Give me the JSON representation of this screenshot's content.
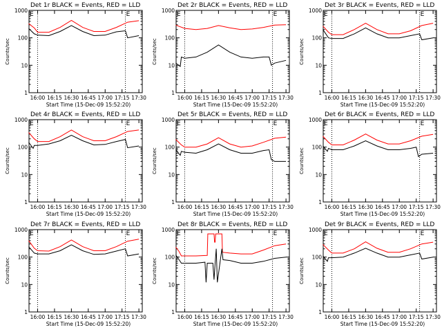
{
  "chart_data": [
    {
      "type": "line",
      "title": "Det 1r BLACK = Events, RED = LLD",
      "xlabel": "Start Time (15-Dec-09 15:52:20)",
      "ylabel": "Counts/sec",
      "yscale": "log",
      "ylim": [
        1,
        1000
      ],
      "x_ticks": [
        "16:00",
        "16:15",
        "16:30",
        "16:45",
        "17:00",
        "17:15",
        "17:30"
      ],
      "y_ticks": [
        "1",
        "10",
        "100",
        "1000"
      ],
      "markers": [
        "16:00",
        "17:18"
      ],
      "flag": "E",
      "series": [
        {
          "color": "#ff0000",
          "x": [
            "15:52",
            "15:57",
            "16:00",
            "16:10",
            "16:20",
            "16:30",
            "16:40",
            "16:50",
            "17:00",
            "17:10",
            "17:20",
            "17:30"
          ],
          "values": [
            330,
            230,
            160,
            160,
            240,
            430,
            240,
            170,
            170,
            240,
            370,
            420
          ]
        },
        {
          "color": "#000000",
          "x": [
            "15:52",
            "15:57",
            "16:00",
            "16:10",
            "16:20",
            "16:30",
            "16:40",
            "16:50",
            "17:00",
            "17:10",
            "17:18",
            "17:20",
            "17:30"
          ],
          "values": [
            220,
            140,
            125,
            120,
            170,
            280,
            170,
            120,
            125,
            165,
            180,
            100,
            120
          ]
        }
      ]
    },
    {
      "type": "line",
      "title": "Det 2r BLACK = Events, RED = LLD",
      "xlabel": "Start Time (15-Dec-09 15:52:20)",
      "ylabel": "Counts/sec",
      "yscale": "log",
      "ylim": [
        1,
        1000
      ],
      "x_ticks": [
        "16:00",
        "16:15",
        "16:30",
        "16:45",
        "17:00",
        "17:15",
        "17:30"
      ],
      "y_ticks": [
        "1",
        "10",
        "100",
        "1000"
      ],
      "markers": [
        "16:00",
        "17:18"
      ],
      "flag": "E",
      "series": [
        {
          "color": "#ff0000",
          "x": [
            "15:52",
            "16:00",
            "16:10",
            "16:20",
            "16:30",
            "16:40",
            "16:50",
            "17:00",
            "17:10",
            "17:20",
            "17:30"
          ],
          "values": [
            290,
            220,
            200,
            220,
            280,
            230,
            200,
            210,
            240,
            290,
            300
          ]
        },
        {
          "color": "#000000",
          "x": [
            "15:52",
            "15:56",
            "15:57",
            "16:00",
            "16:10",
            "16:20",
            "16:30",
            "16:40",
            "16:50",
            "17:00",
            "17:10",
            "17:15",
            "17:17",
            "17:20",
            "17:30"
          ],
          "values": [
            12,
            9,
            20,
            18,
            20,
            30,
            55,
            30,
            20,
            18,
            20,
            20,
            10,
            12,
            15
          ]
        }
      ]
    },
    {
      "type": "line",
      "title": "Det 3r BLACK = Events, RED = LLD",
      "xlabel": "Start Time (15-Dec-09 15:52:20)",
      "ylabel": "Counts/sec",
      "yscale": "log",
      "ylim": [
        1,
        1000
      ],
      "x_ticks": [
        "16:00",
        "16:15",
        "16:30",
        "16:45",
        "17:00",
        "17:15",
        "17:30"
      ],
      "y_ticks": [
        "1",
        "10",
        "100",
        "1000"
      ],
      "markers": [
        "16:00",
        "17:18"
      ],
      "flag": "E",
      "series": [
        {
          "color": "#ff0000",
          "x": [
            "15:52",
            "15:57",
            "16:00",
            "16:10",
            "16:20",
            "16:30",
            "16:40",
            "16:50",
            "17:00",
            "17:10",
            "17:20",
            "17:30"
          ],
          "values": [
            270,
            160,
            130,
            130,
            200,
            340,
            200,
            140,
            140,
            180,
            280,
            340
          ]
        },
        {
          "color": "#000000",
          "x": [
            "15:52",
            "15:57",
            "16:00",
            "16:10",
            "16:20",
            "16:30",
            "16:40",
            "16:50",
            "17:00",
            "17:10",
            "17:18",
            "17:20",
            "17:30"
          ],
          "values": [
            200,
            100,
            95,
            95,
            140,
            230,
            140,
            100,
            100,
            120,
            140,
            85,
            100
          ]
        }
      ]
    },
    {
      "type": "line",
      "title": "Det 4r BLACK = Events, RED = LLD",
      "xlabel": "Start Time (15-Dec-09 15:52:20)",
      "ylabel": "Counts/sec",
      "yscale": "log",
      "ylim": [
        1,
        1000
      ],
      "x_ticks": [
        "16:00",
        "16:15",
        "16:30",
        "16:45",
        "17:00",
        "17:15",
        "17:30"
      ],
      "y_ticks": [
        "1",
        "10",
        "100",
        "1000"
      ],
      "markers": [
        "16:00",
        "17:18"
      ],
      "flag": "E",
      "series": [
        {
          "color": "#ff0000",
          "x": [
            "15:52",
            "15:57",
            "16:00",
            "16:10",
            "16:20",
            "16:30",
            "16:40",
            "16:50",
            "17:00",
            "17:10",
            "17:20",
            "17:30"
          ],
          "values": [
            340,
            200,
            160,
            160,
            240,
            420,
            240,
            170,
            170,
            240,
            370,
            420
          ]
        },
        {
          "color": "#000000",
          "x": [
            "15:52",
            "15:56",
            "15:57",
            "16:00",
            "16:10",
            "16:20",
            "16:30",
            "16:40",
            "16:50",
            "17:00",
            "17:10",
            "17:18",
            "17:20",
            "17:30"
          ],
          "values": [
            150,
            90,
            115,
            115,
            130,
            170,
            270,
            170,
            120,
            125,
            160,
            190,
            95,
            110
          ]
        }
      ]
    },
    {
      "type": "line",
      "title": "Det 5r BLACK = Events, RED = LLD",
      "xlabel": "Start Time (15-Dec-09 15:52:20)",
      "ylabel": "Counts/sec",
      "yscale": "log",
      "ylim": [
        1,
        1000
      ],
      "x_ticks": [
        "16:00",
        "16:15",
        "16:30",
        "16:45",
        "17:00",
        "17:15",
        "17:30"
      ],
      "y_ticks": [
        "1",
        "10",
        "100",
        "1000"
      ],
      "markers": [
        "16:00",
        "17:18"
      ],
      "flag": "E",
      "series": [
        {
          "color": "#ff0000",
          "x": [
            "15:52",
            "15:57",
            "16:00",
            "16:10",
            "16:20",
            "16:30",
            "16:40",
            "16:50",
            "17:00",
            "17:10",
            "17:20",
            "17:30"
          ],
          "values": [
            190,
            120,
            100,
            100,
            130,
            220,
            130,
            100,
            110,
            150,
            210,
            230
          ]
        },
        {
          "color": "#000000",
          "x": [
            "15:52",
            "15:56",
            "15:57",
            "16:00",
            "16:10",
            "16:20",
            "16:30",
            "16:40",
            "16:50",
            "17:00",
            "17:10",
            "17:15",
            "17:17",
            "17:20",
            "17:30"
          ],
          "values": [
            80,
            50,
            70,
            65,
            60,
            80,
            130,
            80,
            60,
            60,
            75,
            80,
            35,
            30,
            30
          ]
        }
      ]
    },
    {
      "type": "line",
      "title": "Det 6r BLACK = Events, RED = LLD",
      "xlabel": "Start Time (15-Dec-09 15:52:20)",
      "ylabel": "Counts/sec",
      "yscale": "log",
      "ylim": [
        1,
        1000
      ],
      "x_ticks": [
        "16:00",
        "16:15",
        "16:30",
        "16:45",
        "17:00",
        "17:15",
        "17:30"
      ],
      "y_ticks": [
        "1",
        "10",
        "100",
        "1000"
      ],
      "markers": [
        "16:00",
        "17:18"
      ],
      "flag": "E",
      "series": [
        {
          "color": "#ff0000",
          "x": [
            "15:52",
            "15:57",
            "16:00",
            "16:10",
            "16:20",
            "16:30",
            "16:40",
            "16:50",
            "17:00",
            "17:10",
            "17:20",
            "17:30"
          ],
          "values": [
            250,
            150,
            120,
            120,
            180,
            300,
            180,
            130,
            130,
            170,
            250,
            290
          ]
        },
        {
          "color": "#000000",
          "x": [
            "15:52",
            "15:56",
            "15:57",
            "16:00",
            "16:10",
            "16:20",
            "16:30",
            "16:40",
            "16:50",
            "17:00",
            "17:10",
            "17:15",
            "17:17",
            "17:20",
            "17:30"
          ],
          "values": [
            110,
            70,
            90,
            80,
            80,
            110,
            170,
            110,
            80,
            80,
            90,
            100,
            45,
            55,
            60
          ]
        }
      ]
    },
    {
      "type": "line",
      "title": "Det 7r BLACK = Events, RED = LLD",
      "xlabel": "Start Time (15-Dec-09 15:52:20)",
      "ylabel": "Counts/sec",
      "yscale": "log",
      "ylim": [
        1,
        1000
      ],
      "x_ticks": [
        "16:00",
        "16:15",
        "16:30",
        "16:45",
        "17:00",
        "17:15",
        "17:30"
      ],
      "y_ticks": [
        "1",
        "10",
        "100",
        "1000"
      ],
      "markers": [
        "16:00",
        "17:18"
      ],
      "flag": "E",
      "series": [
        {
          "color": "#ff0000",
          "x": [
            "15:52",
            "15:57",
            "16:00",
            "16:10",
            "16:20",
            "16:30",
            "16:40",
            "16:50",
            "17:00",
            "17:10",
            "17:20",
            "17:30"
          ],
          "values": [
            400,
            210,
            170,
            165,
            240,
            420,
            240,
            170,
            170,
            240,
            380,
            450
          ]
        },
        {
          "color": "#000000",
          "x": [
            "15:52",
            "15:57",
            "16:00",
            "16:10",
            "16:20",
            "16:30",
            "16:40",
            "16:50",
            "17:00",
            "17:10",
            "17:18",
            "17:20",
            "17:30"
          ],
          "values": [
            240,
            140,
            130,
            130,
            170,
            280,
            170,
            125,
            130,
            165,
            200,
            110,
            130
          ]
        }
      ]
    },
    {
      "type": "line",
      "title": "Det 8r BLACK = Events, RED = LLD",
      "xlabel": "Start Time (15-Dec-09 15:52:20)",
      "ylabel": "Counts/sec",
      "yscale": "log",
      "ylim": [
        1,
        1000
      ],
      "x_ticks": [
        "16:00",
        "16:15",
        "16:30",
        "16:45",
        "17:00",
        "17:15",
        "17:30"
      ],
      "y_ticks": [
        "1",
        "10",
        "100",
        "1000"
      ],
      "markers": [
        "16:00",
        "17:18"
      ],
      "flag": "E",
      "series": [
        {
          "color": "#ff0000",
          "x": [
            "15:52",
            "15:55",
            "15:57",
            "16:00",
            "16:10",
            "16:20",
            "16:20.5",
            "16:26",
            "16:26.5",
            "16:27",
            "16:27.5",
            "16:33",
            "16:33.5",
            "16:40",
            "16:50",
            "17:00",
            "17:10",
            "17:20",
            "17:30"
          ],
          "values": [
            230,
            160,
            110,
            110,
            110,
            115,
            700,
            700,
            350,
            350,
            700,
            700,
            150,
            140,
            130,
            130,
            180,
            260,
            300
          ]
        },
        {
          "color": "#000000",
          "x": [
            "15:52",
            "15:55",
            "15:57",
            "16:00",
            "16:10",
            "16:18",
            "16:19",
            "16:20",
            "16:25",
            "16:26",
            "16:27",
            "16:28",
            "16:29",
            "16:33",
            "16:34",
            "16:40",
            "16:50",
            "17:00",
            "17:10",
            "17:20",
            "17:30"
          ],
          "values": [
            120,
            80,
            60,
            60,
            60,
            65,
            12,
            60,
            60,
            15,
            60,
            200,
            12,
            200,
            80,
            75,
            60,
            60,
            70,
            90,
            100
          ]
        }
      ]
    },
    {
      "type": "line",
      "title": "Det 9r BLACK = Events, RED = LLD",
      "xlabel": "Start Time (15-Dec-09 15:52:20)",
      "ylabel": "Counts/sec",
      "yscale": "log",
      "ylim": [
        1,
        1000
      ],
      "x_ticks": [
        "16:00",
        "16:15",
        "16:30",
        "16:45",
        "17:00",
        "17:15",
        "17:30"
      ],
      "y_ticks": [
        "1",
        "10",
        "100",
        "1000"
      ],
      "markers": [
        "16:00",
        "17:18"
      ],
      "flag": "E",
      "series": [
        {
          "color": "#ff0000",
          "x": [
            "15:52",
            "15:57",
            "16:00",
            "16:10",
            "16:20",
            "16:30",
            "16:40",
            "16:50",
            "17:00",
            "17:10",
            "17:20",
            "17:30"
          ],
          "values": [
            290,
            180,
            140,
            140,
            200,
            360,
            210,
            150,
            150,
            200,
            300,
            350
          ]
        },
        {
          "color": "#000000",
          "x": [
            "15:52",
            "15:56",
            "15:57",
            "16:00",
            "16:10",
            "16:20",
            "16:30",
            "16:40",
            "16:50",
            "17:00",
            "17:10",
            "17:18",
            "17:20",
            "17:30"
          ],
          "values": [
            110,
            70,
            95,
            95,
            100,
            140,
            210,
            140,
            100,
            100,
            120,
            140,
            85,
            100
          ]
        }
      ]
    }
  ]
}
